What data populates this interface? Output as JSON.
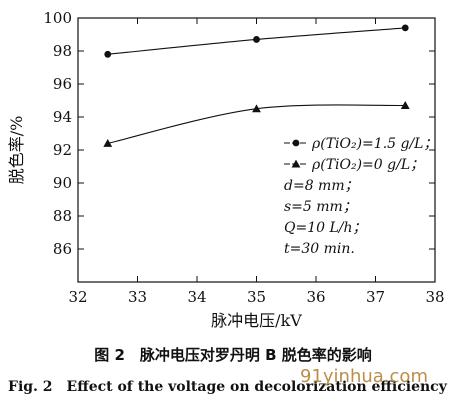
{
  "chart_data": {
    "type": "line",
    "xlabel": "脉冲电压/kV",
    "ylabel": "脱色率/%",
    "xlim": [
      32,
      38
    ],
    "ylim": [
      84,
      100
    ],
    "x_ticks": [
      32,
      33,
      34,
      35,
      36,
      37,
      38
    ],
    "y_ticks": [
      86,
      88,
      90,
      92,
      94,
      96,
      98,
      100
    ],
    "x": [
      32.5,
      35,
      37.5
    ],
    "series": [
      {
        "name": "ρ(TiO₂)=1.5 g/L；",
        "marker": "circle",
        "values": [
          97.8,
          98.7,
          99.4
        ]
      },
      {
        "name": "ρ(TiO₂)=0 g/L；",
        "marker": "triangle",
        "values": [
          92.4,
          94.5,
          94.7
        ]
      }
    ],
    "annotations": [
      "d=8 mm；",
      "s=5 mm；",
      "Q=10 L/h；",
      "t=30 min."
    ],
    "legend_position": "right"
  },
  "caption_cn": "图 2　脉冲电压对罗丹明 B 脱色率的影响",
  "caption_en": "Fig. 2　Effect of the voltage on decolorization efficiency",
  "watermark": "91yinhua.com"
}
